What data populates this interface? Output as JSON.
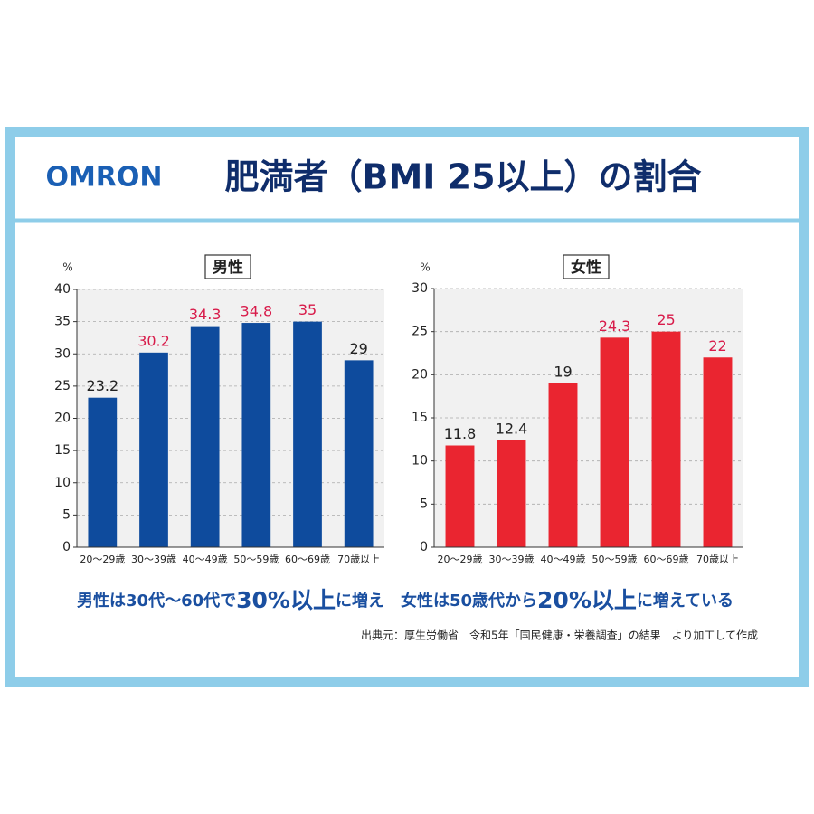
{
  "brand": "OMRON",
  "title": "肥満者（BMI 25以上）の割合",
  "summary": [
    {
      "text": "男性は30代〜60代で",
      "emphasis": false
    },
    {
      "text": "30%以上",
      "emphasis": true
    },
    {
      "text": "に増え　女性は50歳代から",
      "emphasis": false
    },
    {
      "text": "20%以上",
      "emphasis": true
    },
    {
      "text": "に増えている",
      "emphasis": false
    }
  ],
  "source": "出典元：厚生労働省　令和5年「国民健康・栄養調査」の結果　より加工して作成",
  "chart_data": [
    {
      "type": "bar",
      "title": "男性",
      "y_unit": "%",
      "categories": [
        "20〜29歳",
        "30〜39歳",
        "40〜49歳",
        "50〜59歳",
        "60〜69歳",
        "70歳以上"
      ],
      "values": [
        23.2,
        30.2,
        34.3,
        34.8,
        35,
        29
      ],
      "color": "#0e4b9d",
      "value_label_colors": [
        "#222222",
        "#d81b4a",
        "#d81b4a",
        "#d81b4a",
        "#d81b4a",
        "#222222"
      ],
      "ylim": [
        0,
        40
      ],
      "yticks": [
        0,
        5,
        10,
        15,
        20,
        25,
        30,
        35,
        40
      ],
      "grid": true
    },
    {
      "type": "bar",
      "title": "女性",
      "y_unit": "%",
      "categories": [
        "20〜29歳",
        "30〜39歳",
        "40〜49歳",
        "50〜59歳",
        "60〜69歳",
        "70歳以上"
      ],
      "values": [
        11.8,
        12.4,
        19,
        24.3,
        25,
        22
      ],
      "color": "#ea2530",
      "value_label_colors": [
        "#222222",
        "#222222",
        "#222222",
        "#d81b4a",
        "#d81b4a",
        "#d81b4a"
      ],
      "ylim": [
        0,
        30
      ],
      "yticks": [
        0,
        5,
        10,
        15,
        20,
        25,
        30
      ],
      "grid": true
    }
  ]
}
